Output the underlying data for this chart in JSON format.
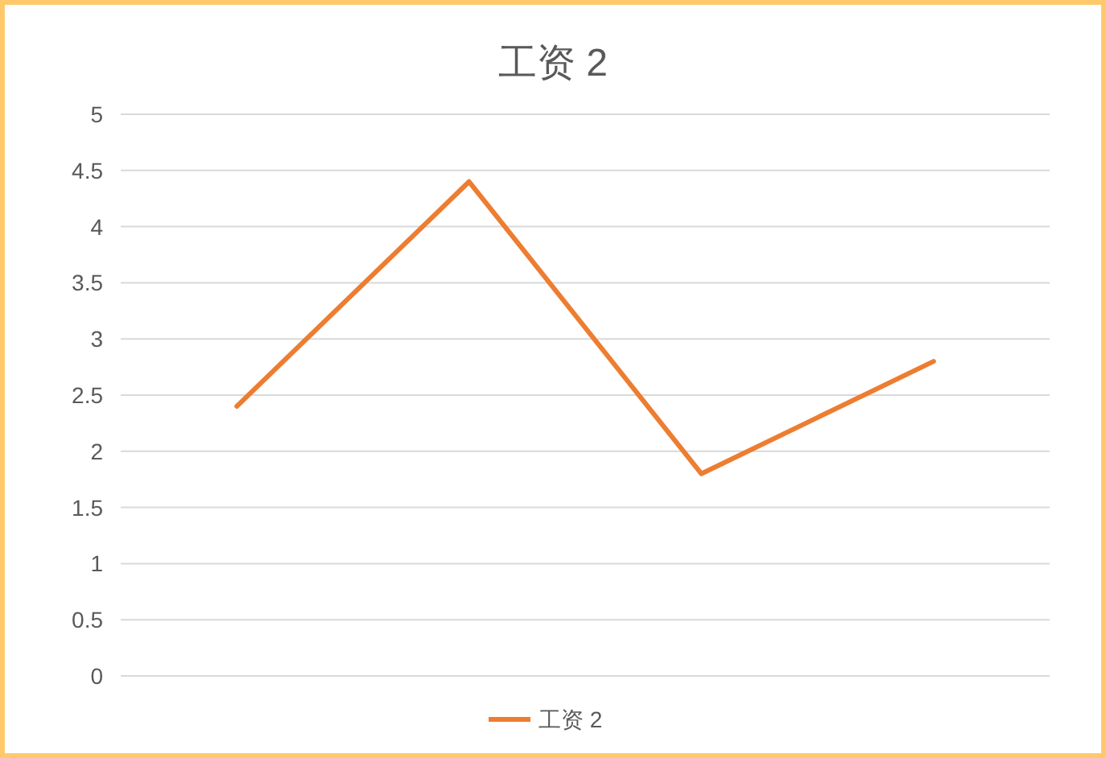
{
  "chart_data": {
    "type": "line",
    "title": "工资 2",
    "categories": [
      null,
      null,
      null,
      null
    ],
    "series": [
      {
        "name": "工资 2",
        "color": "#ed7d31",
        "values": [
          2.4,
          4.4,
          1.8,
          2.8
        ]
      }
    ],
    "ylim": [
      0,
      5
    ],
    "yticks": [
      0,
      0.5,
      1,
      1.5,
      2,
      2.5,
      3,
      3.5,
      4,
      4.5,
      5
    ],
    "grid": "y",
    "legend": "bottom"
  }
}
